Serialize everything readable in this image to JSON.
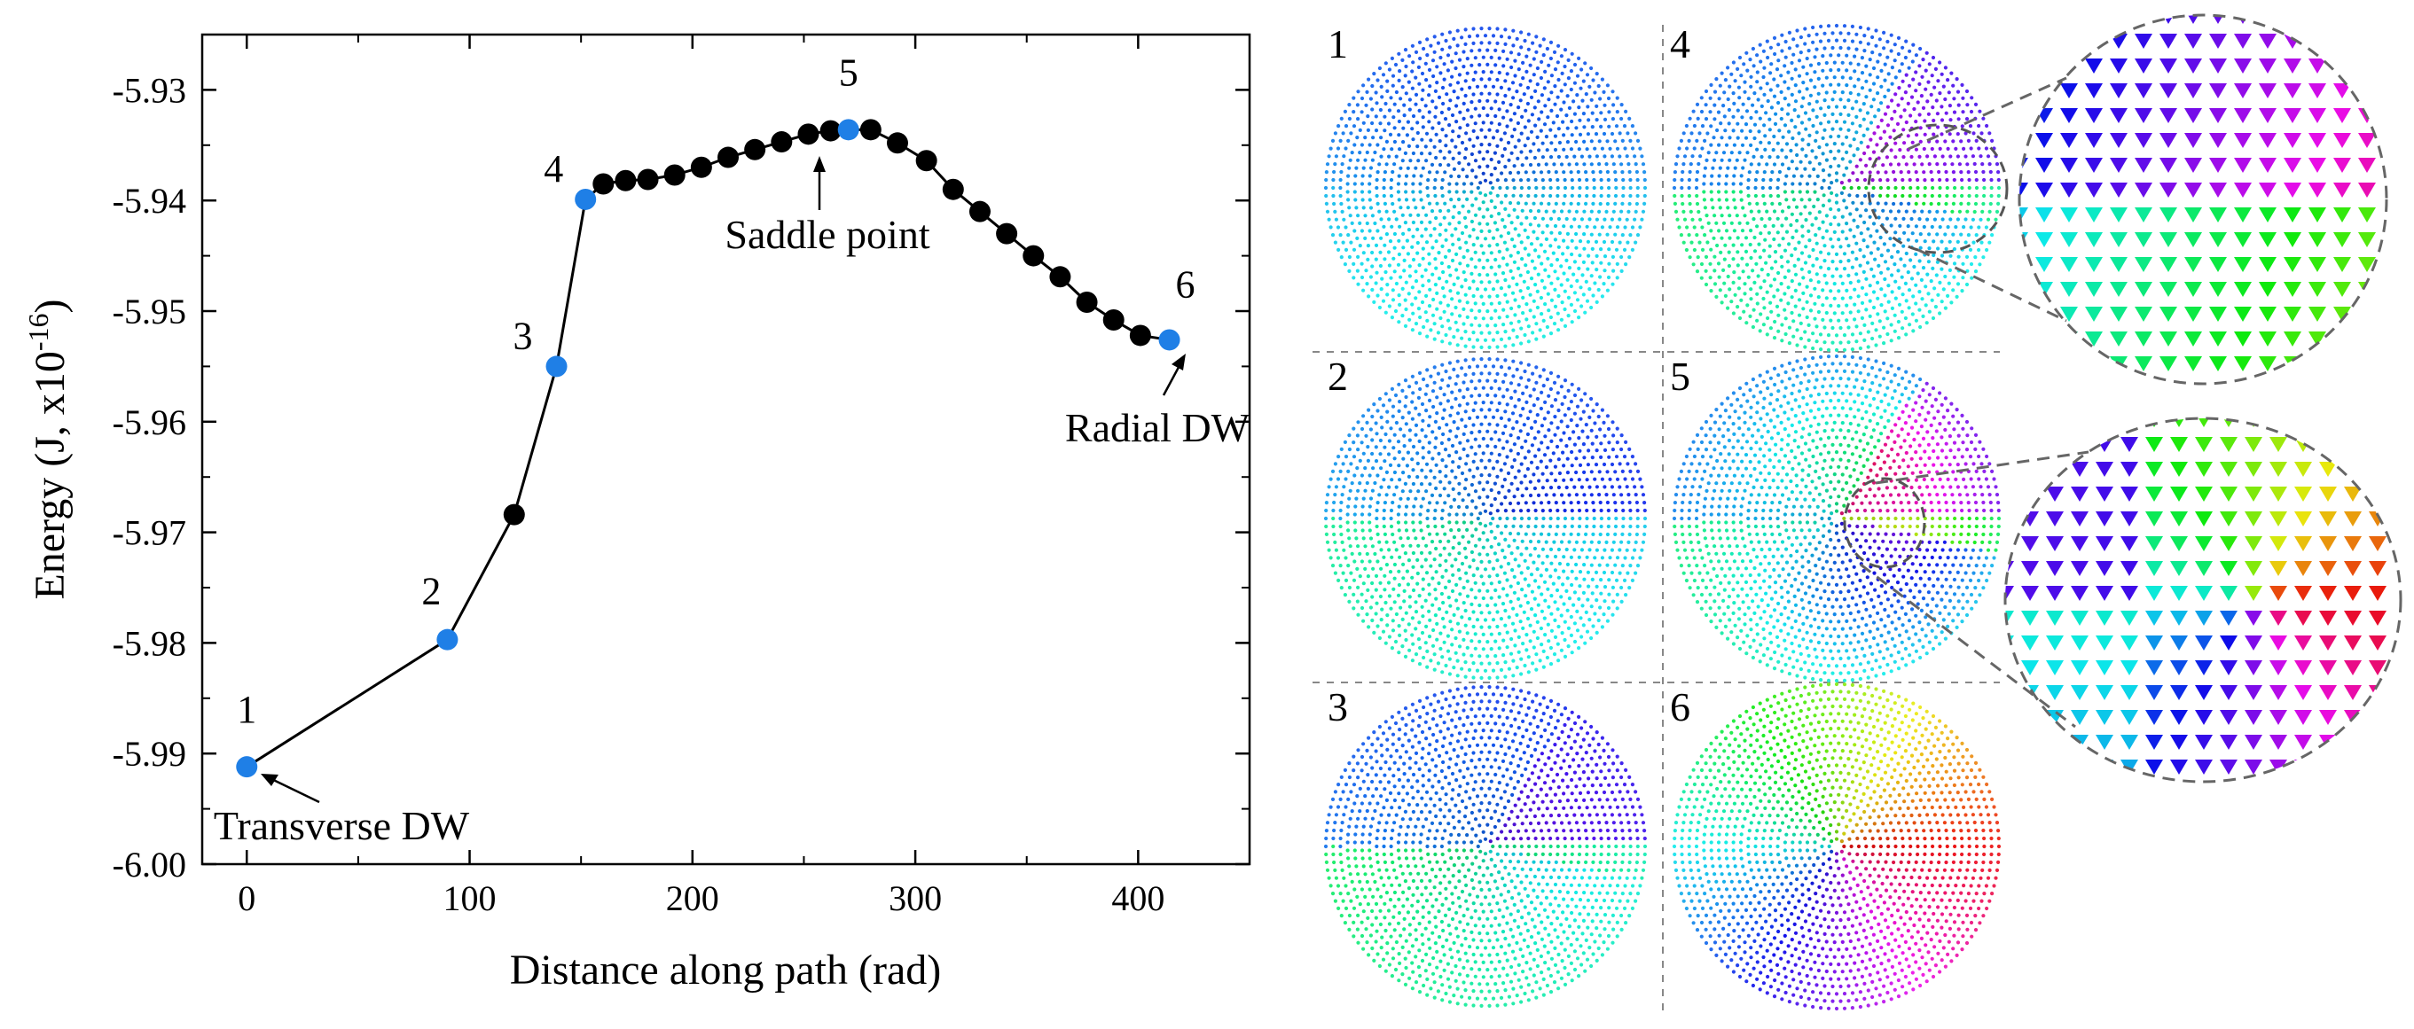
{
  "chart_data": {
    "type": "scatter",
    "xlabel": "Distance along path (rad)",
    "ylabel_main": "Energy (J, x10",
    "ylabel_exp": "-16",
    "ylabel_close": ")",
    "xlim": [
      -20,
      450
    ],
    "ylim": [
      -6.0,
      -5.925
    ],
    "x_ticks": [
      0,
      100,
      200,
      300,
      400
    ],
    "x_tick_labels": [
      "0",
      "100",
      "200",
      "300",
      "400"
    ],
    "y_ticks": [
      -6.0,
      -5.99,
      -5.98,
      -5.97,
      -5.96,
      -5.95,
      -5.94,
      -5.93
    ],
    "y_tick_labels": [
      "-6.00",
      "-5.99",
      "-5.98",
      "-5.97",
      "-5.96",
      "-5.95",
      "-5.94",
      "-5.93"
    ],
    "grid": false,
    "legend": "none",
    "x": [
      0,
      90,
      120,
      139,
      152,
      160,
      170,
      180,
      192,
      204,
      216,
      228,
      240,
      252,
      262,
      270,
      280,
      292,
      305,
      317,
      329,
      341,
      353,
      365,
      377,
      389,
      401,
      414
    ],
    "y": [
      -5.9912,
      -5.9797,
      -5.9684,
      -5.955,
      -5.9399,
      -5.9385,
      -5.9382,
      -5.9381,
      -5.9377,
      -5.937,
      -5.9361,
      -5.9354,
      -5.9347,
      -5.934,
      -5.9337,
      -5.9336,
      -5.9336,
      -5.9348,
      -5.9364,
      -5.939,
      -5.941,
      -5.943,
      -5.945,
      -5.9469,
      -5.9492,
      -5.9508,
      -5.9522,
      -5.9526
    ],
    "highlight": [
      {
        "label": "1",
        "x": 0,
        "y": -5.9912
      },
      {
        "label": "2",
        "x": 90,
        "y": -5.9797
      },
      {
        "label": "3",
        "x": 139,
        "y": -5.955
      },
      {
        "label": "4",
        "x": 152,
        "y": -5.9399
      },
      {
        "label": "5",
        "x": 270,
        "y": -5.9336
      },
      {
        "label": "6",
        "x": 414,
        "y": -5.9526
      }
    ],
    "annotations": [
      {
        "text": "Transverse DW",
        "target_x": 0,
        "target_y": -5.9912
      },
      {
        "text": "Saddle point",
        "target_x": 270,
        "target_y": -5.9336
      },
      {
        "text": "Radial DW",
        "target_x": 414,
        "target_y": -5.9526
      }
    ],
    "colors": {
      "highlight": "#1f7fe6",
      "normal": "#000000",
      "line": "#000000"
    }
  },
  "panels": {
    "labels": [
      "1",
      "4",
      "2",
      "5",
      "3",
      "6"
    ]
  }
}
